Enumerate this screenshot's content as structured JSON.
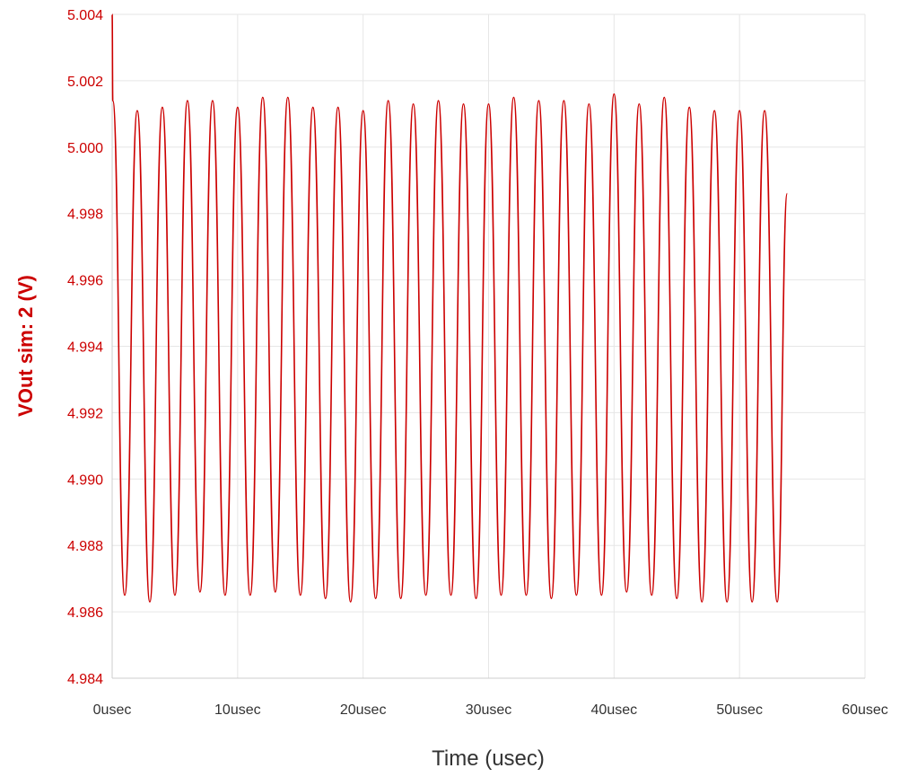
{
  "chart_data": {
    "type": "line",
    "title": "",
    "xlabel": "Time (usec)",
    "ylabel": "VOut sim: 2 (V)",
    "xlim": [
      0,
      60
    ],
    "ylim": [
      4.984,
      5.004
    ],
    "x_ticks": [
      {
        "value": 0,
        "label": "0usec"
      },
      {
        "value": 10,
        "label": "10usec"
      },
      {
        "value": 20,
        "label": "20usec"
      },
      {
        "value": 30,
        "label": "30usec"
      },
      {
        "value": 40,
        "label": "40usec"
      },
      {
        "value": 50,
        "label": "50usec"
      },
      {
        "value": 60,
        "label": "60usec"
      }
    ],
    "y_ticks": [
      {
        "value": 4.984,
        "label": "4.984"
      },
      {
        "value": 4.986,
        "label": "4.986"
      },
      {
        "value": 4.988,
        "label": "4.988"
      },
      {
        "value": 4.99,
        "label": "4.990"
      },
      {
        "value": 4.992,
        "label": "4.992"
      },
      {
        "value": 4.994,
        "label": "4.994"
      },
      {
        "value": 4.996,
        "label": "4.996"
      },
      {
        "value": 4.998,
        "label": "4.998"
      },
      {
        "value": 5.0,
        "label": "5.000"
      },
      {
        "value": 5.002,
        "label": "5.002"
      },
      {
        "value": 5.004,
        "label": "5.004"
      }
    ],
    "grid": true,
    "legend": "none",
    "series": [
      {
        "color": "#cc0000",
        "x": [
          0,
          0.05,
          1.0,
          2.0,
          3.0,
          4.0,
          5.0,
          6.0,
          7.0,
          8.0,
          9.0,
          10.0,
          11.0,
          12.0,
          13.0,
          14.0,
          15.0,
          16.0,
          17.0,
          18.0,
          19.0,
          20.0,
          21.0,
          22.0,
          23.0,
          24.0,
          25.0,
          26.0,
          27.0,
          28.0,
          29.0,
          30.0,
          31.0,
          32.0,
          33.0,
          34.0,
          35.0,
          36.0,
          37.0,
          38.0,
          39.0,
          40.0,
          41.0,
          42.0,
          43.0,
          44.0,
          45.0,
          46.0,
          47.0,
          48.0,
          49.0,
          50.0,
          51.0,
          52.0,
          53.0,
          53.8
        ],
        "y": [
          5.004,
          5.0014,
          4.9865,
          5.0011,
          4.9863,
          5.0012,
          4.9865,
          5.0014,
          4.9866,
          5.0014,
          4.9865,
          5.0012,
          4.9865,
          5.0015,
          4.9866,
          5.0015,
          4.9865,
          5.0012,
          4.9864,
          5.0012,
          4.9863,
          5.0011,
          4.9864,
          5.0014,
          4.9864,
          5.0013,
          4.9865,
          5.0014,
          4.9865,
          5.0013,
          4.9864,
          5.0013,
          4.9865,
          5.0015,
          4.9865,
          5.0014,
          4.9864,
          5.0014,
          4.9865,
          5.0013,
          4.9865,
          5.0016,
          4.9866,
          5.0013,
          4.9865,
          5.0015,
          4.9864,
          5.0012,
          4.9863,
          5.0011,
          4.9863,
          5.0011,
          4.9863,
          5.0011,
          4.9863,
          4.9986
        ]
      }
    ]
  }
}
